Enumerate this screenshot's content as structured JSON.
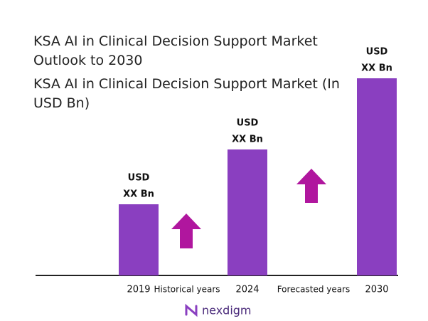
{
  "chart_data": {
    "type": "bar",
    "title": "KSA AI in Clinical Decision Support Market Outlook to 2030",
    "subtitle": "KSA AI in Clinical Decision Support Market (In USD Bn)",
    "categories": [
      "2019",
      "2024",
      "2030"
    ],
    "values": [
      100,
      177,
      277
    ],
    "value_labels": [
      [
        "USD",
        "XX Bn"
      ],
      [
        "USD",
        "XX Bn"
      ],
      [
        "USD",
        "XX Bn"
      ]
    ],
    "color": "#8a3fc0",
    "ylim": [
      0,
      300
    ],
    "annotations": [
      "Historical years",
      "Forecasted years"
    ]
  },
  "footer": {
    "logo": "nexdigm"
  }
}
